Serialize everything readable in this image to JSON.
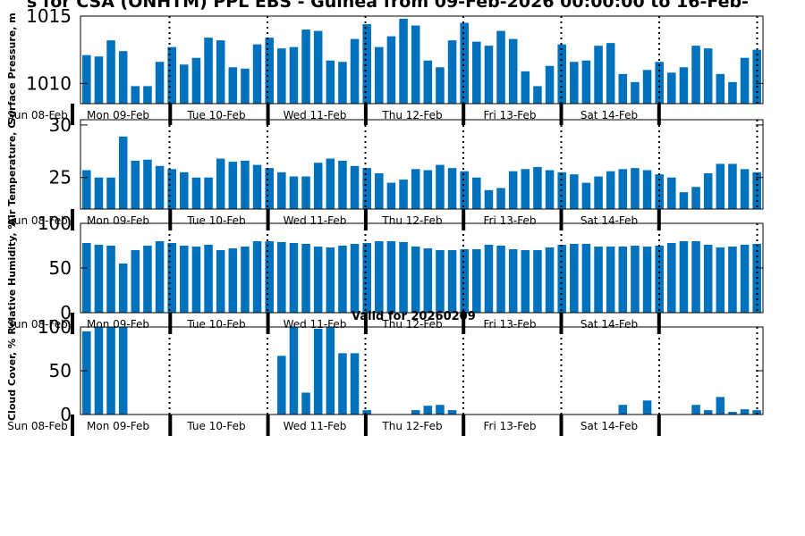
{
  "chart_title": "s for CSA (ONHTM) PPL EBS  - Guinea from 09-Feb-2026 00:00:00 to 16-Feb-",
  "valid_label": "Valid for 20260209",
  "day_labels": [
    "Sun 08-Feb",
    "Mon 09-Feb",
    "Tue 10-Feb",
    "Wed 11-Feb",
    "Thu 12-Feb",
    "Fri 13-Feb",
    "Sat 14-Feb"
  ],
  "colors": {
    "bar": "#0072bd",
    "axis": "#000000"
  },
  "chart_data": [
    {
      "type": "bar",
      "ylabel": "Surface Pressure, m",
      "ylim": [
        1008.5,
        1015
      ],
      "yticks": [
        1010,
        1015
      ],
      "values": [
        1012.1,
        1012.0,
        1013.2,
        1012.4,
        1009.8,
        1009.8,
        1011.6,
        1012.7,
        1011.4,
        1011.9,
        1013.4,
        1013.2,
        1011.2,
        1011.1,
        1012.9,
        1013.4,
        1012.6,
        1012.7,
        1014.0,
        1013.9,
        1011.7,
        1011.6,
        1013.3,
        1014.4,
        1012.7,
        1013.5,
        1014.8,
        1014.3,
        1011.7,
        1011.2,
        1013.2,
        1014.5,
        1013.1,
        1012.8,
        1013.9,
        1013.3,
        1010.9,
        1009.8,
        1011.3,
        1012.9,
        1011.6,
        1011.7,
        1012.8,
        1013.0,
        1010.7,
        1010.1,
        1011.0,
        1011.6,
        1010.8,
        1011.2,
        1012.8,
        1012.6,
        1010.7,
        1010.1,
        1011.9,
        1012.5
      ]
    },
    {
      "type": "bar",
      "ylabel": "Air Temperature, C",
      "ylim": [
        22,
        30.5
      ],
      "yticks": [
        25,
        30
      ],
      "values": [
        25.7,
        25.0,
        25.0,
        28.9,
        26.6,
        26.7,
        26.1,
        25.8,
        25.5,
        25.0,
        25.0,
        26.8,
        26.5,
        26.6,
        26.2,
        25.9,
        25.5,
        25.1,
        25.1,
        26.4,
        26.8,
        26.6,
        26.1,
        25.9,
        25.4,
        24.5,
        24.8,
        25.8,
        25.7,
        26.2,
        25.9,
        25.6,
        25.0,
        23.8,
        24.0,
        25.6,
        25.8,
        26.0,
        25.7,
        25.5,
        25.3,
        24.5,
        25.1,
        25.6,
        25.8,
        25.9,
        25.7,
        25.3,
        25.0,
        23.6,
        24.1,
        25.4,
        26.3,
        26.3,
        25.8,
        25.5
      ]
    },
    {
      "type": "bar",
      "ylabel": "Relative Humidity, %",
      "ylim": [
        0,
        100
      ],
      "yticks": [
        0,
        50,
        100
      ],
      "values": [
        78,
        76,
        75,
        55,
        70,
        75,
        80,
        78,
        75,
        74,
        76,
        70,
        72,
        74,
        80,
        80,
        79,
        78,
        77,
        74,
        73,
        75,
        77,
        78,
        80,
        80,
        79,
        74,
        72,
        70,
        70,
        71,
        71,
        76,
        75,
        71,
        70,
        70,
        73,
        76,
        77,
        77,
        74,
        74,
        74,
        75,
        74,
        75,
        78,
        80,
        80,
        76,
        73,
        74,
        76,
        77
      ]
    },
    {
      "type": "bar",
      "ylabel": "Cloud Cover, %",
      "ylim": [
        0,
        100
      ],
      "yticks": [
        0,
        50,
        100
      ],
      "values": [
        95,
        100,
        100,
        100,
        0,
        0,
        0,
        0,
        0,
        0,
        0,
        0,
        0,
        0,
        0,
        0,
        67,
        100,
        25,
        98,
        100,
        70,
        70,
        5,
        0,
        0,
        0,
        5,
        10,
        11,
        5,
        0,
        0,
        0,
        0,
        0,
        0,
        0,
        0,
        0,
        0,
        0,
        0,
        0,
        11,
        0,
        16,
        0,
        0,
        0,
        11,
        5,
        20,
        3,
        6,
        5
      ]
    }
  ]
}
